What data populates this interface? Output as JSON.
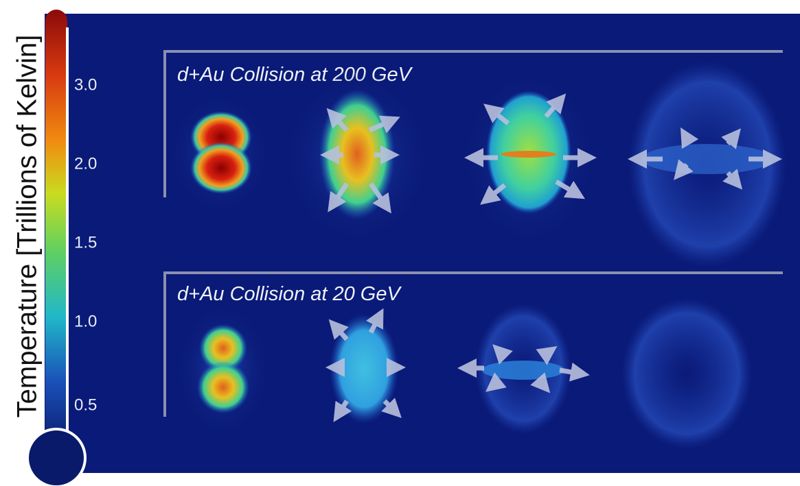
{
  "colorbar": {
    "label": "Temperature [Trillions of Kelvin]",
    "ticks": [
      "3.0",
      "2.0",
      "1.5",
      "1.0",
      "0.5"
    ]
  },
  "panels": [
    {
      "title": "d+Au Collision at 200 GeV"
    },
    {
      "title": "d+Au Collision at 20 GeV"
    }
  ]
}
